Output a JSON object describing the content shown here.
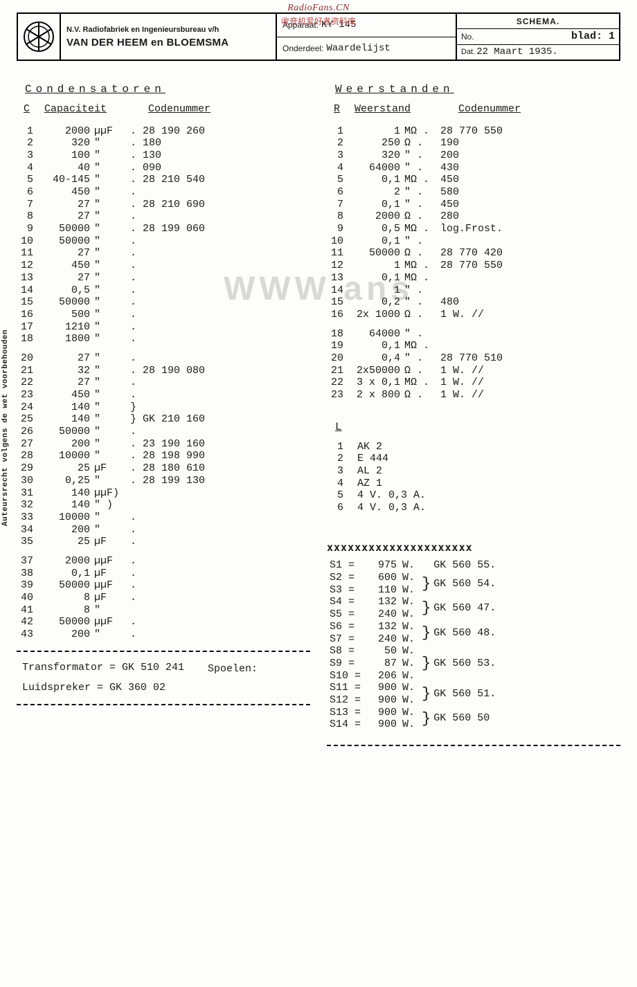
{
  "watermarks": {
    "top": "RadioFans.CN",
    "sub": "收音机爱好者资料库",
    "center": "WWW     ans",
    "side": "Auteursrecht volgens de wet voorbehouden"
  },
  "header": {
    "company_line1": "N.V. Radiofabriek en Ingenieursbureau v/h",
    "company_line2": "VAN DER HEEM en BLOEMSMA",
    "apparaat_label": "Apparaat:",
    "apparaat_value": "KY 145",
    "onderdeel_label": "Onderdeel:",
    "onderdeel_value": "Waardelijst",
    "schema": "SCHEMA.",
    "no_label": "No.",
    "blad_label": "blad:",
    "blad_value": "1",
    "dat_label": "Dat.",
    "dat_value": "22 Maart 1935."
  },
  "left": {
    "title": "Condensatoren",
    "head_c": "C",
    "head_cap": "Capaciteit",
    "head_code": "Codenummer",
    "rows": [
      {
        "n": "1",
        "v": "2000",
        "u": "µµF",
        "code": ". 28 190 260"
      },
      {
        "n": "2",
        "v": "320",
        "u": "\"",
        "code": ".         180"
      },
      {
        "n": "3",
        "v": "100",
        "u": "\"",
        "code": ".         130"
      },
      {
        "n": "4",
        "v": "40",
        "u": "\"",
        "code": ".         090"
      },
      {
        "n": "5",
        "v": "40-145",
        "u": "\"",
        "code": ". 28 210 540"
      },
      {
        "n": "6",
        "v": "450",
        "u": "\"",
        "code": "."
      },
      {
        "n": "7",
        "v": "27",
        "u": "\"",
        "code": ". 28 210 690"
      },
      {
        "n": "8",
        "v": "27",
        "u": "\"",
        "code": "."
      },
      {
        "n": "9",
        "v": "50000",
        "u": "\"",
        "code": ". 28 199 060"
      },
      {
        "n": "10",
        "v": "50000",
        "u": "\"",
        "code": "."
      },
      {
        "n": "11",
        "v": "27",
        "u": "\"",
        "code": "."
      },
      {
        "n": "12",
        "v": "450",
        "u": "\"",
        "code": "."
      },
      {
        "n": "13",
        "v": "27",
        "u": "\"",
        "code": "."
      },
      {
        "n": "14",
        "v": "0,5",
        "u": "\"",
        "code": "."
      },
      {
        "n": "15",
        "v": "50000",
        "u": "\"",
        "code": "."
      },
      {
        "n": "16",
        "v": "500",
        "u": "\"",
        "code": "."
      },
      {
        "n": "17",
        "v": "1210",
        "u": "\"",
        "code": "."
      },
      {
        "n": "18",
        "v": "1800",
        "u": "\"",
        "code": "."
      },
      {
        "gap": true
      },
      {
        "n": "20",
        "v": "27",
        "u": "\"",
        "code": "."
      },
      {
        "n": "21",
        "v": "32",
        "u": "\"",
        "code": ". 28 190 080"
      },
      {
        "n": "22",
        "v": "27",
        "u": "\"",
        "code": "."
      },
      {
        "n": "23",
        "v": "450",
        "u": "\"",
        "code": "."
      },
      {
        "n": "24",
        "v": "140",
        "u": "\"",
        "code": "}"
      },
      {
        "n": "25",
        "v": "140",
        "u": "\"",
        "code": "} GK 210 160"
      },
      {
        "n": "26",
        "v": "50000",
        "u": "\"",
        "code": "."
      },
      {
        "n": "27",
        "v": "200",
        "u": "\"",
        "code": ". 23 190 160"
      },
      {
        "n": "28",
        "v": "10000",
        "u": "\"",
        "code": ". 28 198 990"
      },
      {
        "n": "29",
        "v": "25",
        "u": "µF",
        "code": ". 28 180 610"
      },
      {
        "n": "30",
        "v": "0,25",
        "u": "\"",
        "code": ". 28 199 130"
      },
      {
        "n": "31",
        "v": "140",
        "u": "µµF)",
        "code": ""
      },
      {
        "n": "32",
        "v": "140",
        "u": "\" )",
        "code": ""
      },
      {
        "n": "33",
        "v": "10000",
        "u": "\"",
        "code": "."
      },
      {
        "n": "34",
        "v": "200",
        "u": "\"",
        "code": "."
      },
      {
        "n": "35",
        "v": "25",
        "u": "µF",
        "code": "."
      },
      {
        "gap": true
      },
      {
        "n": "37",
        "v": "2000",
        "u": "µµF",
        "code": "."
      },
      {
        "n": "38",
        "v": "0,1",
        "u": "µF",
        "code": "."
      },
      {
        "n": "39",
        "v": "50000",
        "u": "µµF",
        "code": "."
      },
      {
        "n": "40",
        "v": "8",
        "u": "µF",
        "code": "."
      },
      {
        "n": "41",
        "v": "8",
        "u": "\"",
        "code": ""
      },
      {
        "n": "42",
        "v": "50000",
        "u": "µµF",
        "code": "."
      },
      {
        "n": "43",
        "v": "200",
        "u": "\"",
        "code": "."
      }
    ],
    "transformator": "Transformator = GK 510 241",
    "luidspreker": "Luidspreker   = GK 360 02",
    "spoelen_label": "Spoelen:"
  },
  "right": {
    "title": "Weerstanden",
    "head_r": "R",
    "head_w": "Weerstand",
    "head_code": "Codenummer",
    "rows": [
      {
        "n": "1",
        "v": "1",
        "u": "MΩ .",
        "code": "28 770 550"
      },
      {
        "n": "2",
        "v": "250",
        "u": "Ω .",
        "code": "       190"
      },
      {
        "n": "3",
        "v": "320",
        "u": "\" .",
        "code": "       200"
      },
      {
        "n": "4",
        "v": "64000",
        "u": "\" .",
        "code": "       430"
      },
      {
        "n": "5",
        "v": "0,1",
        "u": "MΩ .",
        "code": "       450"
      },
      {
        "n": "6",
        "v": "2",
        "u": "\" .",
        "code": "       580"
      },
      {
        "n": "7",
        "v": "0,1",
        "u": "\" .",
        "code": "       450"
      },
      {
        "n": "8",
        "v": "2000",
        "u": "Ω .",
        "code": "       280"
      },
      {
        "n": "9",
        "v": "0,5",
        "u": "MΩ .",
        "code": "log.Frost."
      },
      {
        "n": "10",
        "v": "0,1",
        "u": "\" .",
        "code": ""
      },
      {
        "n": "11",
        "v": "50000",
        "u": "Ω .",
        "code": "28 770 420"
      },
      {
        "n": "12",
        "v": "1",
        "u": "MΩ .",
        "code": "28 770 550"
      },
      {
        "n": "13",
        "v": "0,1",
        "u": "MΩ .",
        "code": ""
      },
      {
        "n": "14",
        "v": "1",
        "u": "\" .",
        "code": ""
      },
      {
        "n": "15",
        "v": "0,2",
        "u": "\" .",
        "code": "       480"
      },
      {
        "n": "16",
        "v": "2x 1000",
        "u": "Ω .",
        "code": "1 W. //"
      },
      {
        "gap": true
      },
      {
        "n": "18",
        "v": "64000",
        "u": "\" .",
        "code": ""
      },
      {
        "n": "19",
        "v": "0,1",
        "u": "MΩ .",
        "code": ""
      },
      {
        "n": "20",
        "v": "0,4",
        "u": "\" .",
        "code": "28 770 510"
      },
      {
        "n": "21",
        "v": "2x50000",
        "u": "Ω .",
        "code": "1 W. //"
      },
      {
        "n": "22",
        "v": "3 x 0,1",
        "u": "MΩ .",
        "code": "1 W. //"
      },
      {
        "n": "23",
        "v": "2 x 800",
        "u": "Ω .",
        "code": "1 W. //"
      }
    ],
    "L_title": "L",
    "L_rows": [
      {
        "n": "1",
        "v": "AK 2"
      },
      {
        "n": "2",
        "v": "E 444"
      },
      {
        "n": "3",
        "v": "AL 2"
      },
      {
        "n": "4",
        "v": "AZ 1"
      },
      {
        "n": "5",
        "v": "4 V. 0,3 A."
      },
      {
        "n": "6",
        "v": "4 V. 0,3 A."
      }
    ],
    "strike": "xxxxxxxxxxxxxxxxxxxxx",
    "spoelen": [
      {
        "s": "S1",
        "eq": "975",
        "w": "W.",
        "br": "",
        "code": "GK 560 55."
      },
      {
        "s": "S2",
        "eq": "600",
        "w": "W.",
        "br": "}",
        "code": "GK 560 54.",
        "span": 2
      },
      {
        "s": "S3",
        "eq": "110",
        "w": "W.",
        "br": "",
        "code": ""
      },
      {
        "s": "S4",
        "eq": "132",
        "w": "W.",
        "br": "}",
        "code": "GK 560 47.",
        "span": 2
      },
      {
        "s": "S5",
        "eq": "240",
        "w": "W.",
        "br": "",
        "code": ""
      },
      {
        "s": "S6",
        "eq": "132",
        "w": "W.",
        "br": "}",
        "code": "GK 560 48.",
        "span": 2
      },
      {
        "s": "S7",
        "eq": "240",
        "w": "W.",
        "br": "",
        "code": ""
      },
      {
        "s": "S8",
        "eq": "50",
        "w": "W.",
        "br": "}",
        "code": "GK 560 53.",
        "span": 3
      },
      {
        "s": "S9",
        "eq": "87",
        "w": "W.",
        "br": "",
        "code": ""
      },
      {
        "s": "S10",
        "eq": "206",
        "w": "W.",
        "br": "",
        "code": ""
      },
      {
        "s": "S11",
        "eq": "900",
        "w": "W.",
        "br": "}",
        "code": "GK 560 51.",
        "span": 2
      },
      {
        "s": "S12",
        "eq": "900",
        "w": "W.",
        "br": "",
        "code": ""
      },
      {
        "s": "S13",
        "eq": "900",
        "w": "W.",
        "br": "}",
        "code": "GK 560 50",
        "span": 2
      },
      {
        "s": "S14",
        "eq": "900",
        "w": "W.",
        "br": "",
        "code": ""
      }
    ]
  },
  "colors": {
    "text": "#1a1a1a",
    "bg": "#fdfdfc",
    "watermark_red": "#8a2a2a",
    "watermark_grey": "#d8d8d6"
  }
}
